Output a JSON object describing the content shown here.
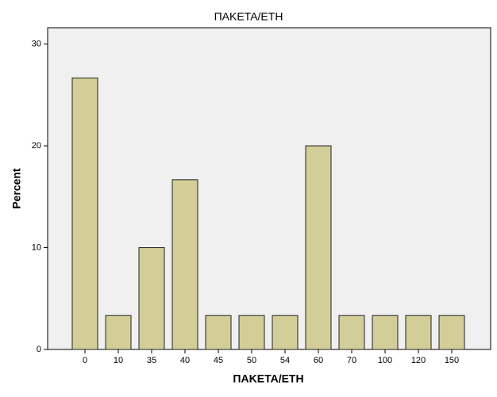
{
  "chart_data": {
    "type": "bar",
    "title": "ΠΑΚΕΤΑ/ΕΤΗ",
    "x_label": "ΠΑΚΕΤΑ/ΕΤΗ",
    "y_label": "Percent",
    "categories": [
      "0",
      "10",
      "35",
      "40",
      "45",
      "50",
      "54",
      "60",
      "70",
      "100",
      "120",
      "150"
    ],
    "values": [
      26.67,
      3.33,
      10,
      16.67,
      3.33,
      3.33,
      3.33,
      20,
      3.33,
      3.33,
      3.33,
      3.33
    ],
    "color": "#d3ce97",
    "ylim": [
      0,
      31.6
    ],
    "yticks": [
      0,
      10,
      20,
      30
    ]
  }
}
